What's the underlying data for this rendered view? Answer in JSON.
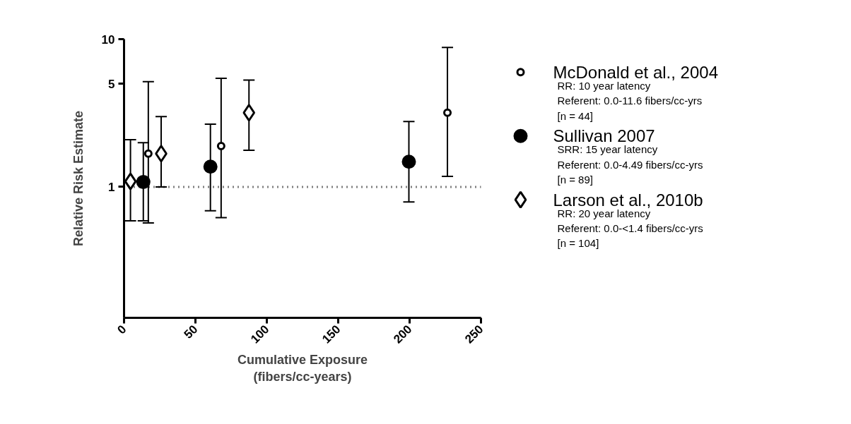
{
  "chart_data": {
    "type": "scatter",
    "xlabel": "Cumulative Exposure\n(fibers/cc-years)",
    "ylabel": "Relative Risk Estimate",
    "xlim": [
      0,
      250
    ],
    "xticks": [
      0,
      50,
      100,
      150,
      200,
      250
    ],
    "ylim": [
      0.13,
      10
    ],
    "yticks": [
      1,
      5,
      10
    ],
    "log": "y",
    "grid": false,
    "legend": "right",
    "series": [
      {
        "name": "McDonald et al., 2004",
        "color": "#ffffff",
        "marker": "circle",
        "x": [
          17,
          68,
          226.5
        ],
        "values": [
          1.68,
          1.89,
          3.18
        ],
        "errors": [
          [
            0.57,
            5.16
          ],
          [
            0.62,
            5.43
          ],
          [
            1.18,
            8.8
          ]
        ]
      },
      {
        "name": "Sullivan 2007",
        "color": "#000000",
        "marker": "circle",
        "x": [
          13.5,
          60.5,
          199.5
        ],
        "values": [
          1.08,
          1.37,
          1.48
        ],
        "errors": [
          [
            0.59,
            1.99
          ],
          [
            0.69,
            2.66
          ],
          [
            0.79,
            2.77
          ]
        ]
      },
      {
        "name": "Larson et al., 2010b",
        "color": "#ffffff",
        "marker": "diamond",
        "x": [
          4.5,
          26,
          87.5
        ],
        "values": [
          1.09,
          1.68,
          3.18
        ],
        "errors": [
          [
            0.59,
            2.09
          ],
          [
            1.0,
            2.99
          ],
          [
            1.77,
            5.29
          ]
        ]
      }
    ],
    "ref_lines": [
      {
        "axis": "y",
        "value": 1,
        "label": null,
        "color": "#000000",
        "line_style": "dotted"
      }
    ],
    "annotations": [
      "RR: 10 year latency\nReferent: 0.0-11.6 fibers/cc-yrs\n[n = 44]",
      "SRR: 15 year latency\nReferent: 0.0-4.49 fibers/cc-yrs\n[n = 89]",
      "RR: 20 year latency\nReferent: 0.0-<1.4 fibers/cc-yrs\n[n = 104]"
    ]
  }
}
